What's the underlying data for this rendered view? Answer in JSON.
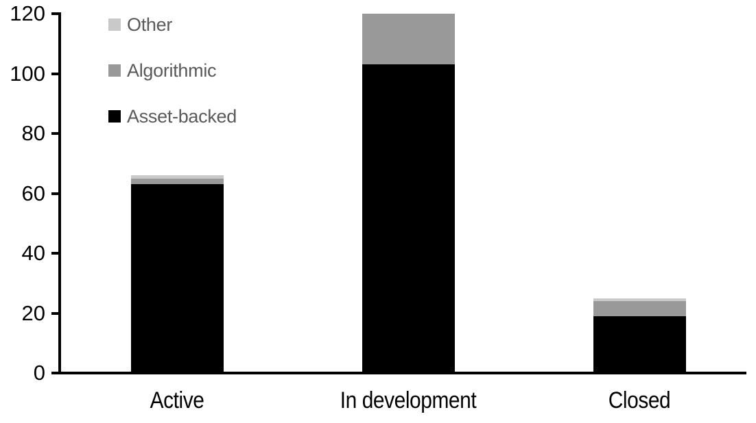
{
  "chart_data": {
    "type": "bar",
    "stacked": true,
    "title": "",
    "xlabel": "",
    "ylabel": "",
    "categories": [
      "Active",
      "In development",
      "Closed"
    ],
    "series": [
      {
        "name": "Asset-backed",
        "color": "#000000",
        "values": [
          63,
          103,
          19
        ]
      },
      {
        "name": "Algorithmic",
        "color": "#999999",
        "values": [
          2,
          17,
          5
        ]
      },
      {
        "name": "Other",
        "color": "#c9c9c9",
        "values": [
          1,
          0,
          1
        ]
      }
    ],
    "totals": [
      66,
      120,
      25
    ],
    "ylim": [
      0,
      120
    ],
    "yticks": [
      0,
      20,
      40,
      60,
      80,
      100,
      120
    ],
    "grid": false,
    "legend": {
      "position": "top-left-inside",
      "order": [
        "Other",
        "Algorithmic",
        "Asset-backed"
      ],
      "text_color": "#595959"
    },
    "axis_color": "#000000",
    "background": "#ffffff"
  }
}
